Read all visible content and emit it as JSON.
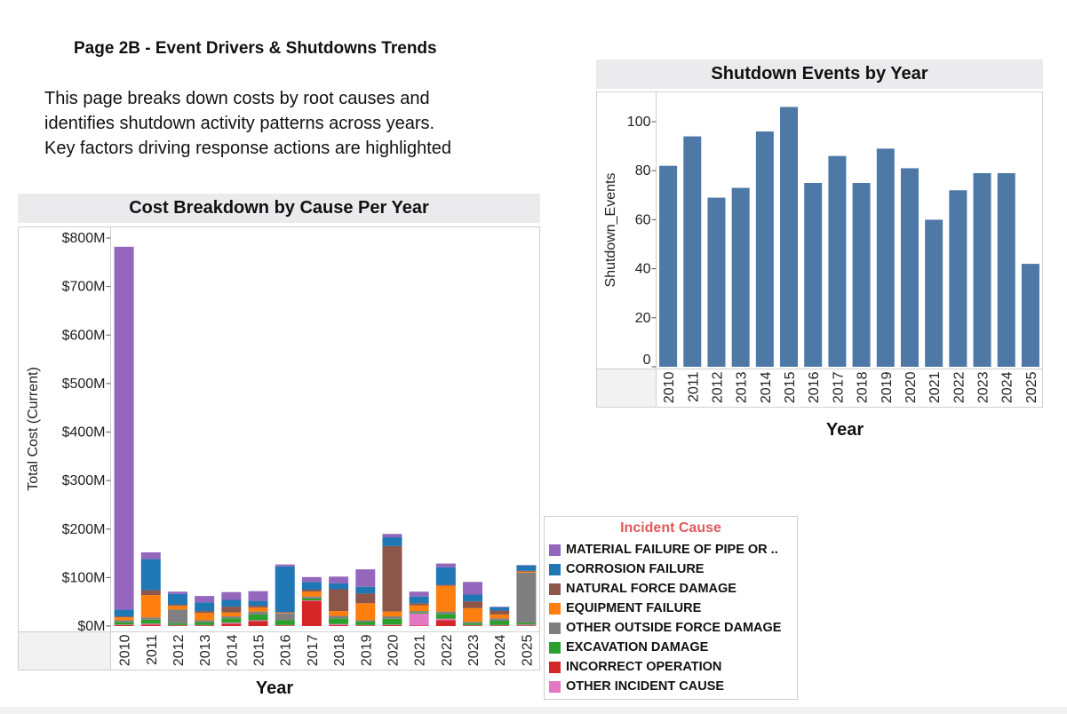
{
  "page": {
    "title": "Page 2B - Event Drivers  & Shutdowns Trends",
    "description_lines": [
      "This page breaks down costs by root causes and",
      "identifies shutdown activity patterns across years.",
      "Key factors driving response actions are highlighted"
    ]
  },
  "chart_data": [
    {
      "type": "bar",
      "stacked": true,
      "title": "Cost Breakdown by Cause Per Year",
      "xlabel": "Year",
      "ylabel": "Total Cost (Current)",
      "ylim": [
        0,
        800
      ],
      "yticks": [
        0,
        100,
        200,
        300,
        400,
        500,
        600,
        700,
        800
      ],
      "ytick_labels": [
        "$0M",
        "$100M",
        "$200M",
        "$300M",
        "$400M",
        "$500M",
        "$600M",
        "$700M",
        "$800M"
      ],
      "grid": false,
      "categories": [
        "2010",
        "2011",
        "2012",
        "2013",
        "2014",
        "2015",
        "2016",
        "2017",
        "2018",
        "2019",
        "2020",
        "2021",
        "2022",
        "2023",
        "2024",
        "2025"
      ],
      "series": [
        {
          "name": "INCORRECT OPERATION",
          "color": "#d62728",
          "values": [
            2,
            3,
            1,
            1,
            5,
            10,
            1,
            52,
            2,
            1,
            2,
            1,
            12,
            1,
            1,
            1
          ]
        },
        {
          "name": "OTHER INCIDENT CAUSE",
          "color": "#e377c2",
          "values": [
            1,
            2,
            1,
            1,
            2,
            2,
            1,
            1,
            2,
            1,
            1,
            25,
            3,
            1,
            1,
            2
          ]
        },
        {
          "name": "EXCAVATION DAMAGE",
          "color": "#2ca02c",
          "values": [
            5,
            8,
            4,
            6,
            9,
            12,
            10,
            4,
            12,
            7,
            12,
            2,
            10,
            4,
            9,
            4
          ]
        },
        {
          "name": "OTHER OUTSIDE FORCE DAMAGE",
          "color": "#7f7f7f",
          "values": [
            4,
            5,
            28,
            4,
            4,
            6,
            14,
            4,
            5,
            3,
            5,
            3,
            5,
            3,
            5,
            103
          ]
        },
        {
          "name": "EQUIPMENT FAILURE",
          "color": "#ff7f0e",
          "values": [
            6,
            46,
            8,
            15,
            8,
            8,
            1,
            10,
            10,
            35,
            10,
            12,
            53,
            28,
            8,
            2
          ]
        },
        {
          "name": "NATURAL FORCE DAMAGE",
          "color": "#8c564b",
          "values": [
            2,
            10,
            2,
            4,
            12,
            4,
            2,
            4,
            45,
            20,
            135,
            4,
            2,
            14,
            8,
            2
          ]
        },
        {
          "name": "CORROSION FAILURE",
          "color": "#1f77b4",
          "values": [
            14,
            64,
            22,
            18,
            14,
            10,
            94,
            16,
            12,
            14,
            18,
            14,
            36,
            14,
            7,
            11
          ]
        },
        {
          "name": "MATERIAL FAILURE OF PIPE OR ..",
          "color": "#9467bd",
          "values": [
            748,
            14,
            5,
            13,
            16,
            20,
            4,
            10,
            14,
            36,
            7,
            10,
            8,
            26,
            1,
            1
          ]
        }
      ]
    },
    {
      "type": "bar",
      "title": "Shutdown Events by Year",
      "xlabel": "Year",
      "ylabel": "Shutdown_Events",
      "ylim": [
        0,
        110
      ],
      "yticks": [
        0,
        20,
        40,
        60,
        80,
        100
      ],
      "ytick_labels": [
        "0",
        "20",
        "40",
        "60",
        "80",
        "100"
      ],
      "grid": false,
      "color": "#4e79a7",
      "categories": [
        "2010",
        "2011",
        "2012",
        "2013",
        "2014",
        "2015",
        "2016",
        "2017",
        "2018",
        "2019",
        "2020",
        "2021",
        "2022",
        "2023",
        "2024",
        "2025"
      ],
      "values": [
        82,
        94,
        69,
        73,
        96,
        106,
        75,
        86,
        75,
        89,
        81,
        60,
        72,
        79,
        79,
        42
      ]
    }
  ],
  "legend": {
    "title": "Incident Cause",
    "title_color": "#e05a5a",
    "items": [
      {
        "label": "MATERIAL FAILURE OF PIPE OR ..",
        "color": "#9467bd"
      },
      {
        "label": "CORROSION FAILURE",
        "color": "#1f77b4"
      },
      {
        "label": "NATURAL FORCE DAMAGE",
        "color": "#8c564b"
      },
      {
        "label": "EQUIPMENT FAILURE",
        "color": "#ff7f0e"
      },
      {
        "label": "OTHER OUTSIDE FORCE DAMAGE",
        "color": "#7f7f7f"
      },
      {
        "label": "EXCAVATION DAMAGE",
        "color": "#2ca02c"
      },
      {
        "label": "INCORRECT OPERATION",
        "color": "#d62728"
      },
      {
        "label": "OTHER INCIDENT CAUSE",
        "color": "#e377c2"
      }
    ]
  }
}
